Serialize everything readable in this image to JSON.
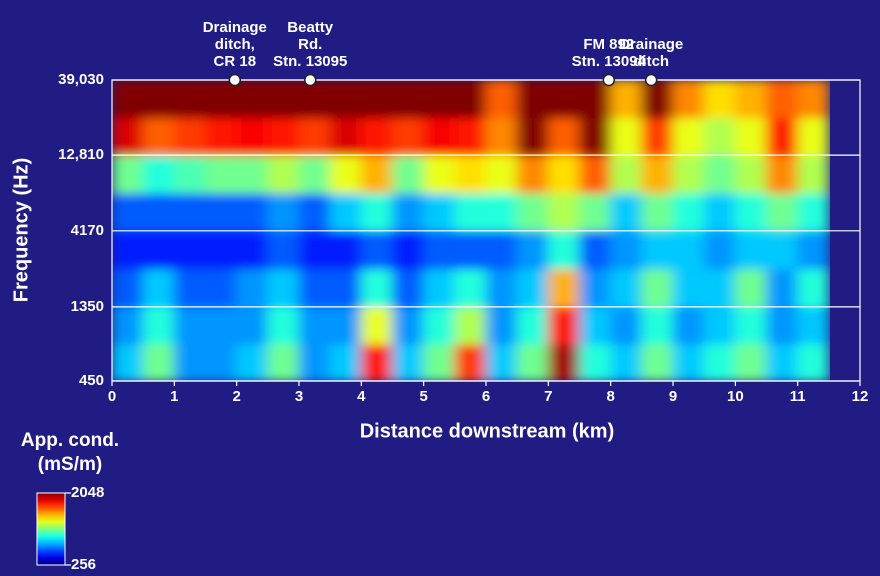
{
  "chart_data": {
    "type": "heatmap",
    "xlabel": "Distance downstream (km)",
    "ylabel": "Frequency (Hz)",
    "xlim": [
      0,
      12
    ],
    "xticks": [
      0,
      1,
      2,
      3,
      4,
      5,
      6,
      7,
      8,
      9,
      10,
      11,
      12
    ],
    "ylim": [
      450,
      39030
    ],
    "log_y": true,
    "yticks": [
      450,
      1350,
      4170,
      {
        "value": 12810,
        "label": "12,810"
      },
      {
        "value": 39030,
        "label": "39,030"
      }
    ],
    "grid": true,
    "x_edges": [
      0,
      0.5,
      1,
      1.5,
      2,
      2.5,
      3,
      3.5,
      4,
      4.5,
      5,
      5.5,
      6,
      6.5,
      7,
      7.5,
      8,
      8.5,
      9,
      9.5,
      10,
      10.5,
      11,
      11.5
    ],
    "y_edges": [
      450,
      779,
      1350,
      2373,
      4170,
      7309,
      12810,
      22360,
      39030
    ],
    "values": [
      [
        500,
        700,
        450,
        450,
        500,
        700,
        450,
        500,
        1500,
        500,
        700,
        1400,
        500,
        700,
        1900,
        600,
        500,
        700,
        500,
        600,
        700,
        500,
        600
      ],
      [
        450,
        600,
        450,
        450,
        450,
        600,
        450,
        450,
        900,
        450,
        600,
        800,
        450,
        600,
        1500,
        500,
        450,
        600,
        450,
        500,
        600,
        450,
        500
      ],
      [
        400,
        500,
        400,
        400,
        450,
        500,
        400,
        400,
        600,
        400,
        500,
        600,
        450,
        500,
        1100,
        450,
        500,
        700,
        500,
        500,
        700,
        450,
        600
      ],
      [
        350,
        350,
        350,
        350,
        350,
        400,
        350,
        350,
        400,
        350,
        400,
        400,
        400,
        450,
        600,
        400,
        450,
        500,
        500,
        450,
        500,
        500,
        450
      ],
      [
        400,
        400,
        400,
        400,
        400,
        450,
        400,
        500,
        600,
        450,
        500,
        600,
        600,
        700,
        800,
        700,
        500,
        700,
        600,
        500,
        600,
        700,
        600
      ],
      [
        700,
        600,
        650,
        700,
        700,
        800,
        700,
        900,
        1100,
        700,
        900,
        1000,
        900,
        1200,
        1000,
        1300,
        800,
        1100,
        800,
        700,
        800,
        1200,
        800
      ],
      [
        1700,
        1300,
        1400,
        1500,
        1600,
        1500,
        1400,
        1700,
        1500,
        1400,
        1600,
        1500,
        1200,
        2048,
        1300,
        2048,
        900,
        1400,
        900,
        800,
        900,
        1500,
        900
      ],
      [
        2048,
        2048,
        2048,
        2048,
        2048,
        2048,
        2048,
        2048,
        2048,
        2048,
        2048,
        2048,
        1300,
        2048,
        2048,
        2048,
        1100,
        2048,
        1200,
        1000,
        1100,
        1300,
        1200
      ]
    ],
    "colorbar": {
      "title_lines": [
        "App. cond.",
        "(mS/m)"
      ],
      "clim": [
        256,
        2048
      ],
      "ticks": [
        2048,
        256
      ],
      "colormap": "jet"
    },
    "markers": [
      {
        "x": 1.97,
        "lines": [
          "Drainage",
          "ditch,",
          "CR 18"
        ]
      },
      {
        "x": 3.18,
        "lines": [
          "Beatty",
          "Rd.",
          "Stn. 13095"
        ]
      },
      {
        "x": 7.97,
        "lines": [
          "FM 892",
          "Stn. 13094"
        ]
      },
      {
        "x": 8.65,
        "lines": [
          "Drainage",
          "ditch"
        ]
      }
    ]
  }
}
